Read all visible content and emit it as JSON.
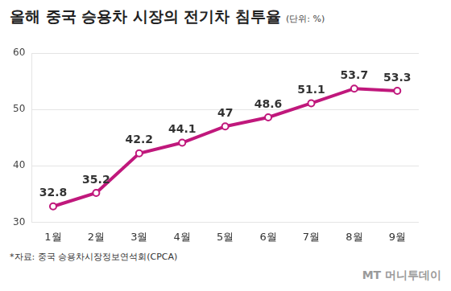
{
  "chart_data": {
    "type": "line",
    "title": "올해 중국 승용차 시장의 전기차 침투율",
    "subtitle": "(단위: %)",
    "source": "*자료: 중국 승용차시장정보연석회(CPCA)",
    "credit": "MT 머니투데이",
    "categories": [
      "1월",
      "2월",
      "3월",
      "4월",
      "5월",
      "6월",
      "7월",
      "8월",
      "9월"
    ],
    "values": [
      32.8,
      35.2,
      42.2,
      44.1,
      47,
      48.6,
      51.1,
      53.7,
      53.3
    ],
    "color": "#c0187c",
    "marker": "circle",
    "ylim": [
      30,
      60
    ],
    "yticks": [
      30,
      40,
      50,
      60
    ],
    "grid": true,
    "data_labels": true
  }
}
